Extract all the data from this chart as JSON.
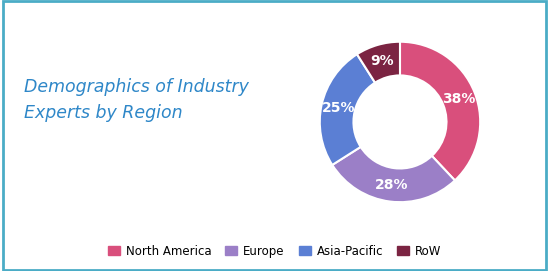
{
  "title_line1": "Demographics of Industry",
  "title_line2": "Experts by Region",
  "title_color": "#2E87C8",
  "title_fontsize": 12.5,
  "slices": [
    38,
    28,
    25,
    9
  ],
  "labels": [
    "North America",
    "Europe",
    "Asia-Pacific",
    "RoW"
  ],
  "colors": [
    "#d94f7c",
    "#9b7fc7",
    "#5b7fd4",
    "#7b2442"
  ],
  "pct_labels": [
    "38%",
    "28%",
    "25%",
    "9%"
  ],
  "pct_color": "#ffffff",
  "pct_fontsize": 10,
  "legend_fontsize": 8.5,
  "background_color": "#ffffff",
  "border_color": "#4bacc6",
  "donut_width": 0.42,
  "startangle": 90
}
